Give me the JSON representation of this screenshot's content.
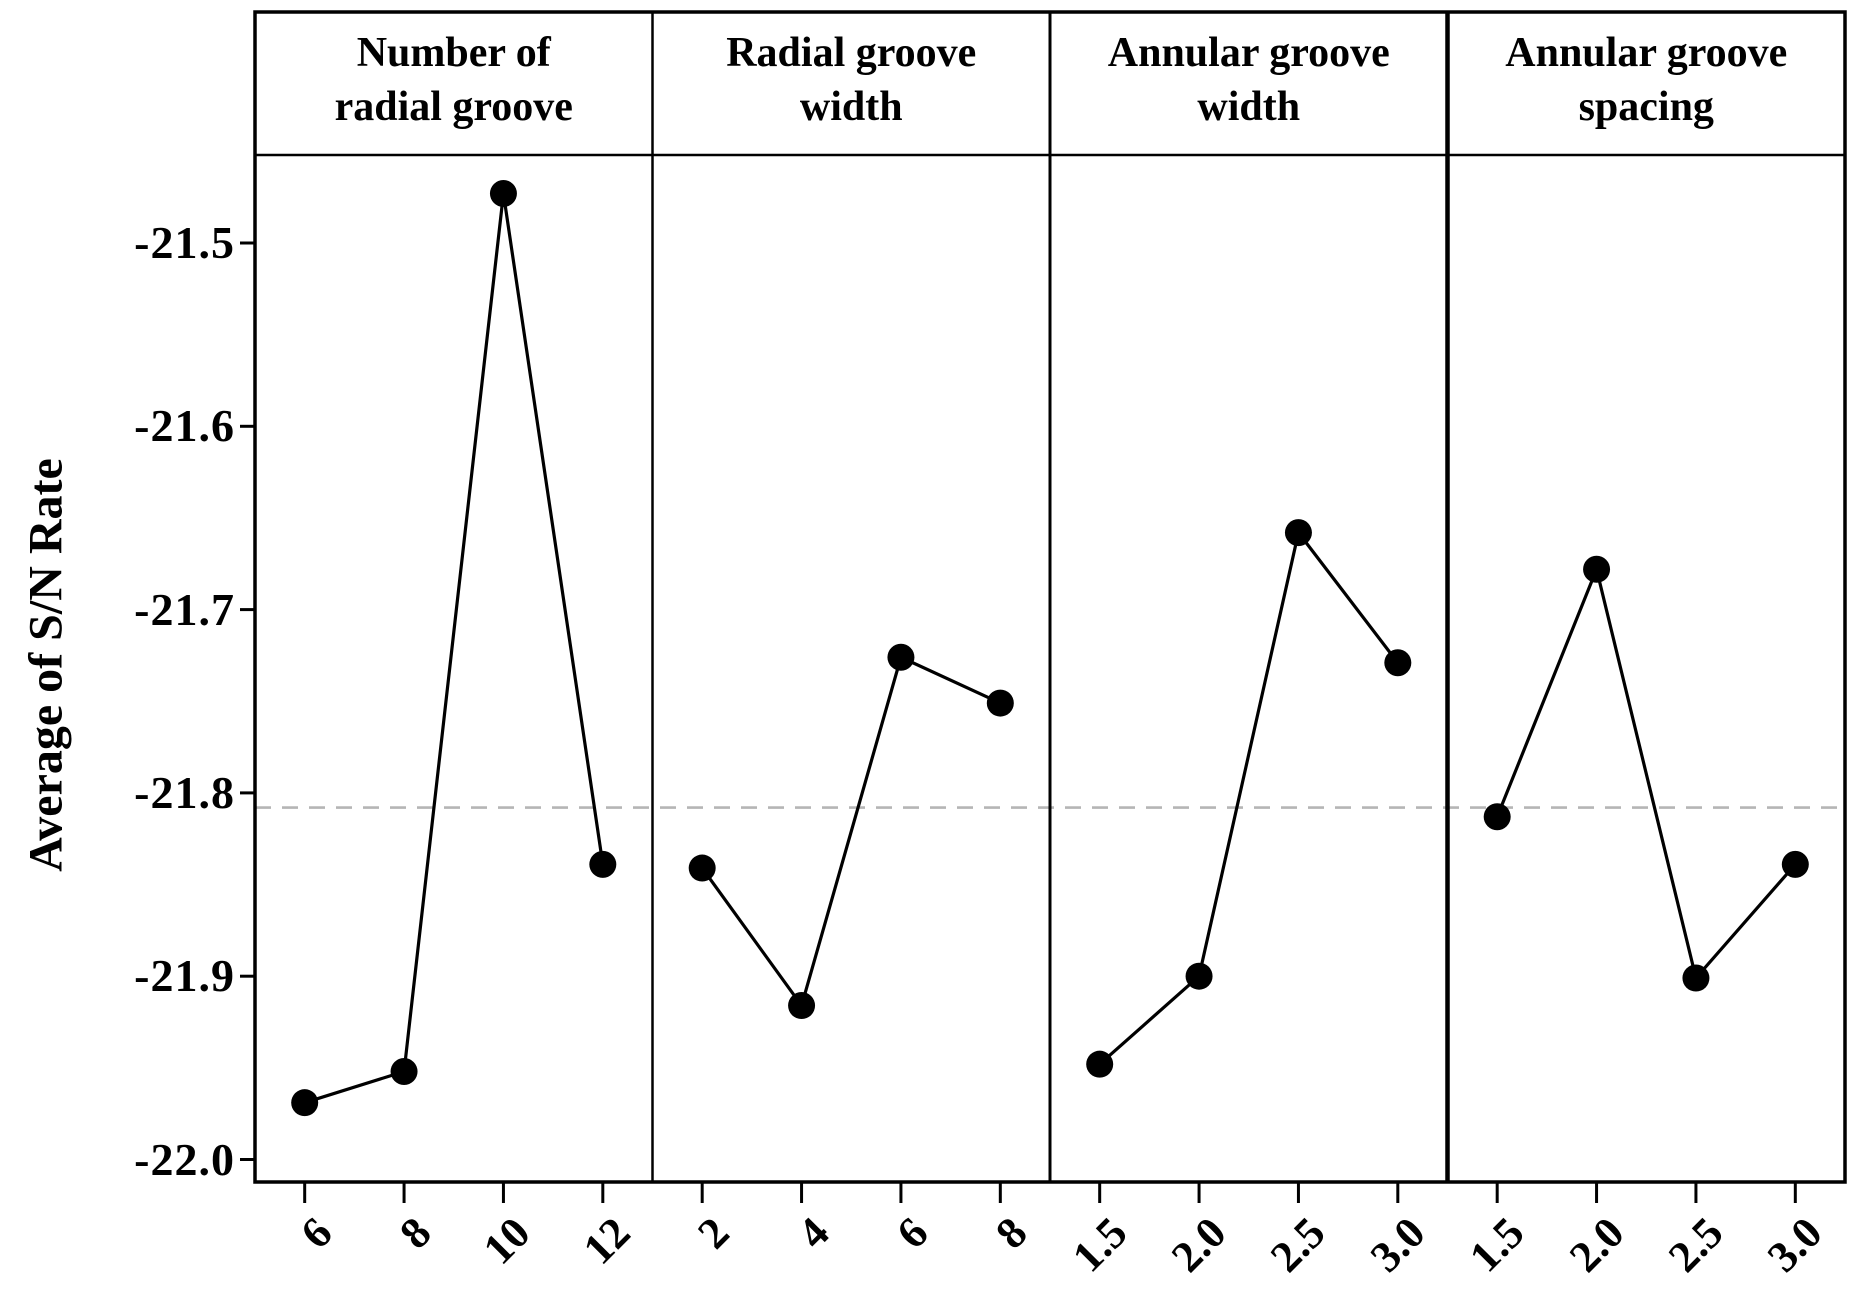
{
  "chart_data": {
    "type": "line",
    "subtype": "main-effects-plot",
    "title": "",
    "ylabel": "Average of S/N Rate",
    "xlabel": "",
    "y_tick_labels": [
      "-21.5",
      "-21.6",
      "-21.7",
      "-21.8",
      "-21.9",
      "-22.0"
    ],
    "ylim": [
      -22.01,
      -21.45
    ],
    "grid": false,
    "legend": null,
    "line_color": "#000000",
    "marker": {
      "shape": "circle",
      "color": "#000000"
    },
    "reference_line": {
      "value": -21.808,
      "style": "dashed",
      "color": "#b5b5b5"
    },
    "panels": [
      {
        "title_lines": [
          "Number of",
          "radial groove"
        ],
        "categories": [
          "6",
          "8",
          "10",
          "12"
        ],
        "values": [
          -21.969,
          -21.952,
          -21.473,
          -21.839
        ]
      },
      {
        "title_lines": [
          "Radial groove",
          "width"
        ],
        "categories": [
          "2",
          "4",
          "6",
          "8"
        ],
        "values": [
          -21.841,
          -21.916,
          -21.726,
          -21.751
        ]
      },
      {
        "title_lines": [
          "Annular groove",
          "width"
        ],
        "categories": [
          "1.5",
          "2.0",
          "2.5",
          "3.0"
        ],
        "values": [
          -21.948,
          -21.9,
          -21.658,
          -21.729
        ]
      },
      {
        "title_lines": [
          "Annular groove",
          "spacing"
        ],
        "categories": [
          "1.5",
          "2.0",
          "2.5",
          "3.0"
        ],
        "values": [
          -21.813,
          -21.678,
          -21.901,
          -21.839
        ]
      }
    ]
  }
}
